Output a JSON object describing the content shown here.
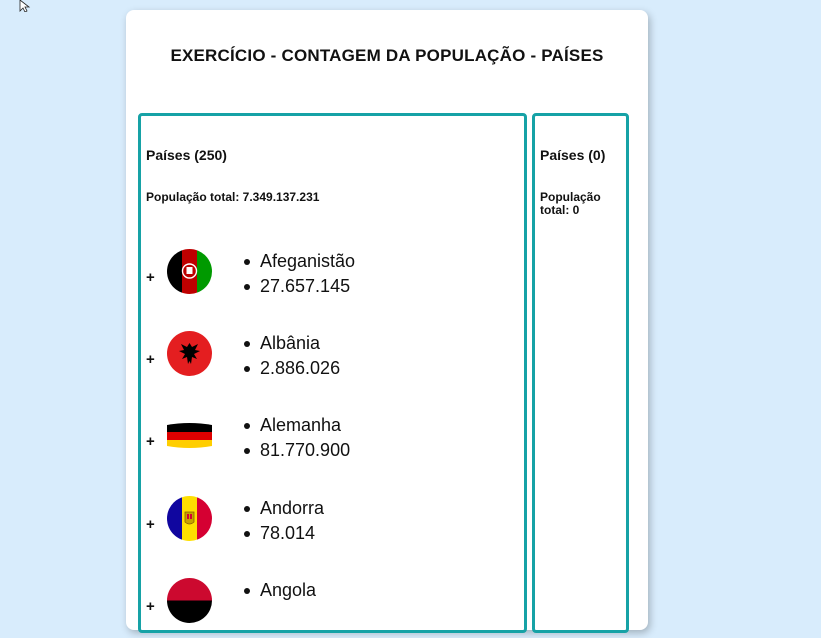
{
  "title": "EXERCÍCIO - CONTAGEM DA POPULAÇÃO - PAÍSES",
  "left_panel": {
    "heading": "Países (250)",
    "total": "População total: 7.349.137.231",
    "countries": [
      {
        "name": "Afeganistão",
        "population": "27.657.145",
        "flag": "afghanistan-flag-icon"
      },
      {
        "name": "Albânia",
        "population": "2.886.026",
        "flag": "albania-flag-icon"
      },
      {
        "name": "Alemanha",
        "population": "81.770.900",
        "flag": "germany-flag-icon"
      },
      {
        "name": "Andorra",
        "population": "78.014",
        "flag": "andorra-flag-icon"
      },
      {
        "name": "Angola",
        "population": "",
        "flag": "angola-flag-icon"
      }
    ]
  },
  "right_panel": {
    "heading": "Países (0)",
    "total": "População total: 0"
  },
  "add_label": "+",
  "colors": {
    "background": "#d8ecfc",
    "panel_border": "#16a2a6"
  }
}
